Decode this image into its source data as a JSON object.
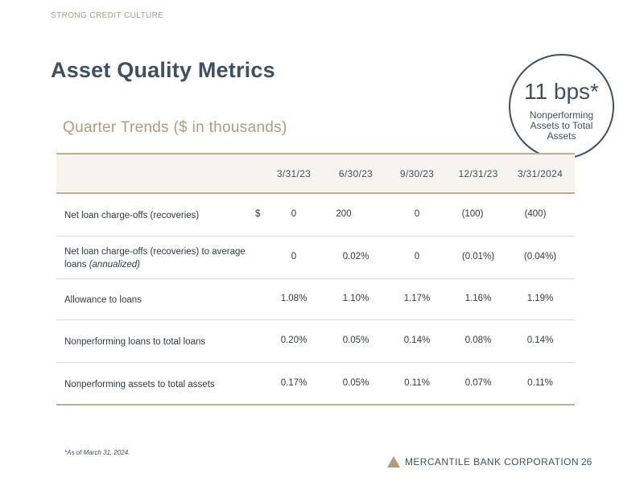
{
  "kicker": "STRONG CREDIT CULTURE",
  "title": "Asset Quality Metrics",
  "subtitle": "Quarter Trends ($ in thousands)",
  "callout": {
    "value": "11 bps*",
    "label": "Nonperforming Assets to Total Assets"
  },
  "table": {
    "columns": [
      "3/31/23",
      "6/30/23",
      "9/30/23",
      "12/31/23",
      "3/31/2024"
    ],
    "rows": [
      {
        "label": "Net loan charge-offs (recoveries)",
        "label_italic": "",
        "currency": "$",
        "values": [
          "0",
          "200",
          "0",
          "(100)",
          "(400)"
        ]
      },
      {
        "label": "Net loan charge-offs (recoveries) to average loans",
        "label_italic": "(annualized)",
        "currency": "",
        "values": [
          "0",
          "0.02%",
          "0",
          "(0.01%)",
          "(0.04%)"
        ]
      },
      {
        "label": "Allowance to loans",
        "label_italic": "",
        "currency": "",
        "values": [
          "1.08%",
          "1.10%",
          "1.17%",
          "1.16%",
          "1.19%"
        ]
      },
      {
        "label": "Nonperforming loans to total loans",
        "label_italic": "",
        "currency": "",
        "values": [
          "0.20%",
          "0.05%",
          "0.14%",
          "0.08%",
          "0.14%"
        ]
      },
      {
        "label": "Nonperforming assets to total assets",
        "label_italic": "",
        "currency": "",
        "values": [
          "0.17%",
          "0.05%",
          "0.11%",
          "0.07%",
          "0.11%"
        ]
      }
    ]
  },
  "footnote": "*As of March 31, 2024.",
  "brand": {
    "name": "MERCANTILE BANK CORPORATION",
    "logo_icon": "triangle-logo-icon"
  },
  "page_number": "26",
  "colors": {
    "navy": "#3f5060",
    "tan": "#b39a7c",
    "header_bg": "#f7f3ee",
    "rule": "#c2ab8f"
  }
}
